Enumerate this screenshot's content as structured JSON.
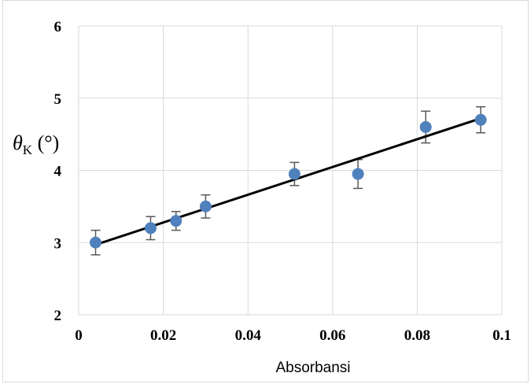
{
  "chart_data": {
    "type": "scatter",
    "xlabel": "Absorbansi",
    "ylabel": {
      "symbol": "θ",
      "subscript": "K",
      "unit": " (°)"
    },
    "xlim": [
      0,
      0.1
    ],
    "ylim": [
      2,
      6
    ],
    "x_ticks": [
      0,
      0.02,
      0.04,
      0.06,
      0.08,
      0.1
    ],
    "x_tick_labels": [
      "0",
      "0.02",
      "0.04",
      "0.06",
      "0.08",
      "0.1"
    ],
    "y_ticks": [
      2,
      3,
      4,
      5,
      6
    ],
    "y_tick_labels": [
      "2",
      "3",
      "4",
      "5",
      "6"
    ],
    "grid": true,
    "legend": "none",
    "series": [
      {
        "x": [
          0.004,
          0.017,
          0.023,
          0.03,
          0.051,
          0.066,
          0.082,
          0.095
        ],
        "y": [
          3.0,
          3.2,
          3.3,
          3.5,
          3.95,
          3.95,
          4.6,
          4.7
        ],
        "error": [
          0.17,
          0.16,
          0.13,
          0.16,
          0.16,
          0.2,
          0.22,
          0.18
        ],
        "color": "#4f81bd"
      }
    ],
    "trendline": {
      "type": "linear",
      "x_start": 0.004,
      "x_end": 0.095,
      "y_start": 2.97,
      "y_end": 4.72,
      "color": "#000000"
    }
  }
}
